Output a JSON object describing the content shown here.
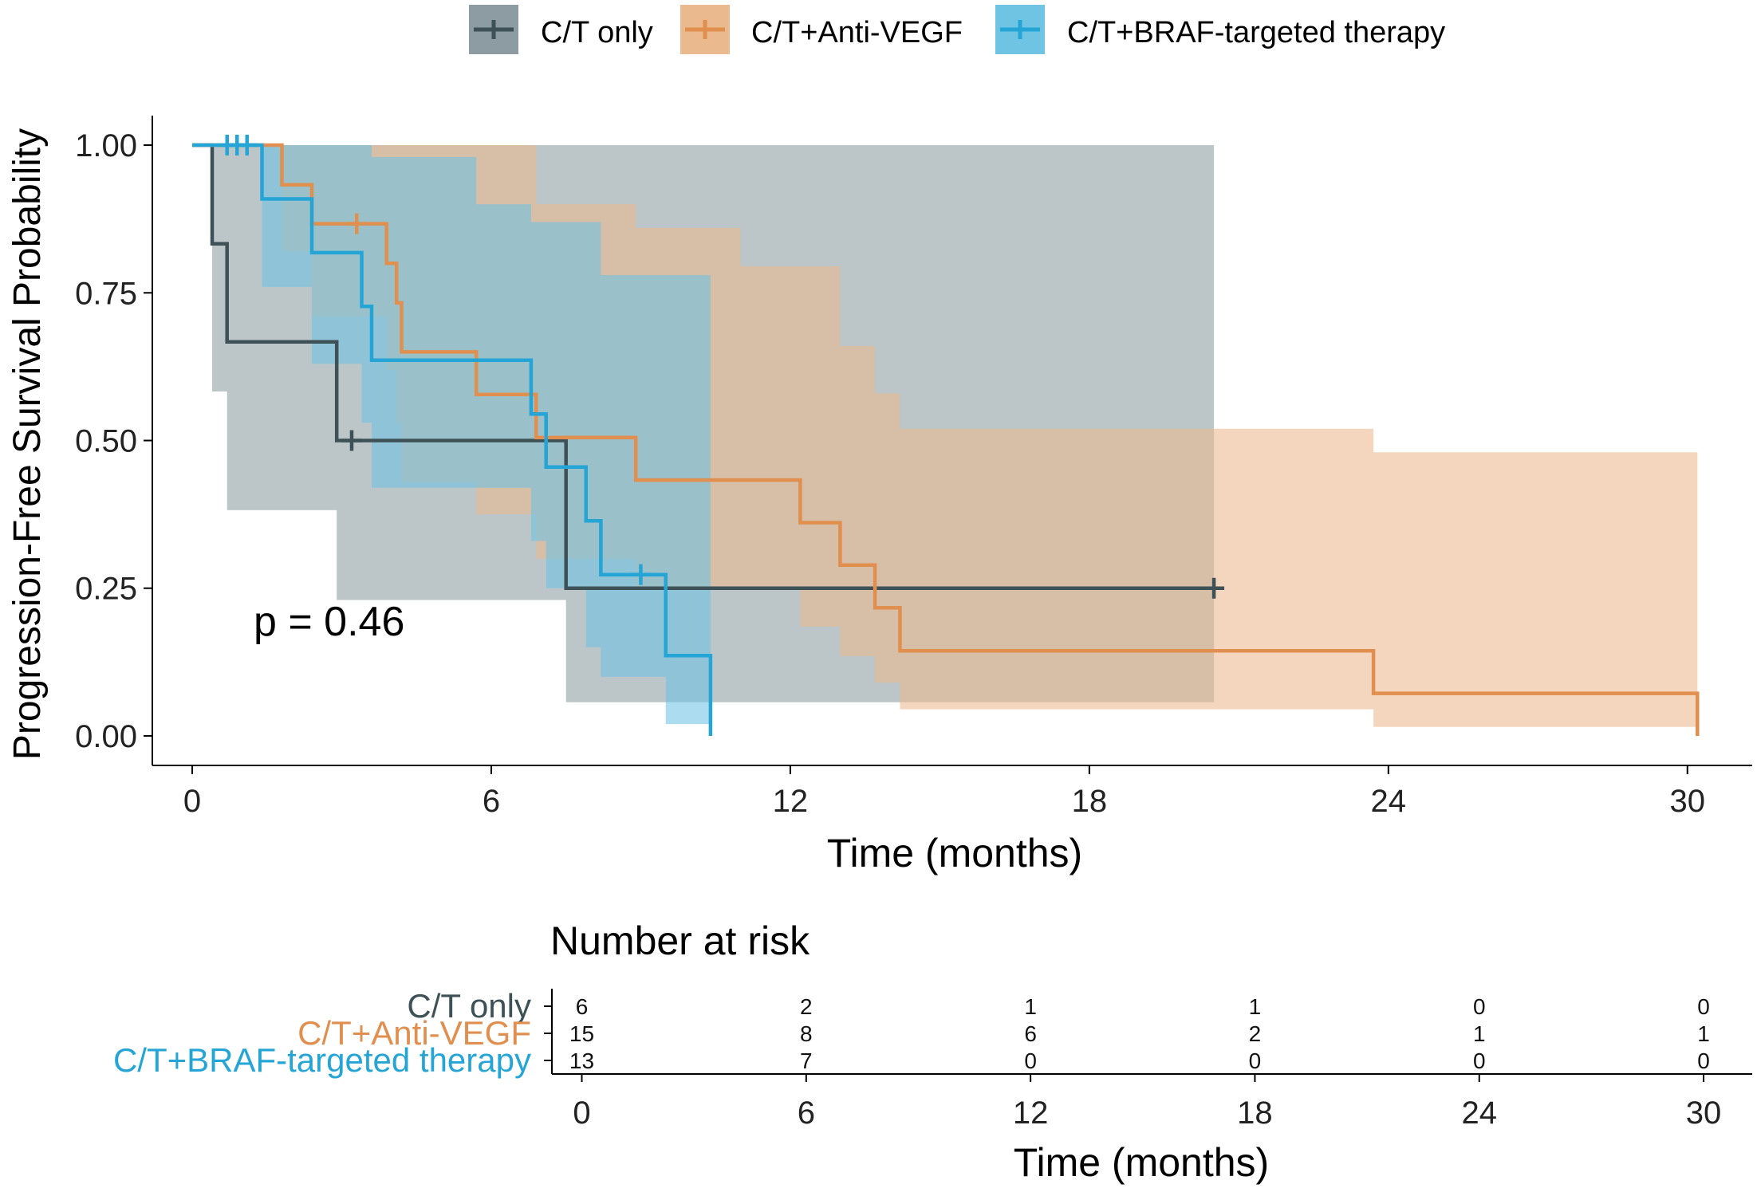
{
  "colors": {
    "ct_only": "#3d5157",
    "ct_anti_vegf": "#e08f4f",
    "ct_braf": "#25a5d6",
    "ct_only_ci": "#8c9ca2",
    "ct_anti_vegf_ci": "#eab98d",
    "ct_braf_ci": "#6fc3e3",
    "axis": "#000000"
  },
  "chart_data": [
    {
      "type": "line",
      "subtype": "kaplan-meier step",
      "title": "",
      "xlabel": "Time (months)",
      "ylabel": "Progression-Free Survival Probability",
      "xlim": [
        -0.8,
        31.3
      ],
      "ylim": [
        -0.05,
        1.05
      ],
      "x_ticks": [
        0,
        6,
        12,
        18,
        24,
        30
      ],
      "x_tick_labels": [
        "0",
        "6",
        "12",
        "18",
        "24",
        "30"
      ],
      "y_ticks": [
        0.0,
        0.25,
        0.5,
        0.75,
        1.0
      ],
      "y_tick_labels": [
        "0.00",
        "0.25",
        "0.50",
        "0.75",
        "1.00"
      ],
      "legend_position": "top",
      "annotation": "p = 0.46",
      "series": [
        {
          "name": "C/T only",
          "color_key": "ct_only",
          "steps": [
            [
              0,
              1.0
            ],
            [
              0.4,
              0.833
            ],
            [
              0.7,
              0.667
            ],
            [
              2.9,
              0.5
            ],
            [
              7.5,
              0.25
            ],
            [
              20.5,
              0.25
            ]
          ],
          "censors": [
            [
              3.2,
              0.5
            ],
            [
              20.5,
              0.25
            ]
          ],
          "ci": [
            [
              0,
              1.0,
              1.0
            ],
            [
              0.4,
              1.0,
              0.583
            ],
            [
              0.7,
              1.0,
              0.382
            ],
            [
              2.9,
              1.0,
              0.23
            ],
            [
              7.5,
              1.0,
              0.057
            ],
            [
              20.5,
              1.0,
              0.057
            ]
          ]
        },
        {
          "name": "C/T+Anti-VEGF",
          "color_key": "ct_anti_vegf",
          "steps": [
            [
              0,
              1.0
            ],
            [
              1.8,
              0.933
            ],
            [
              2.4,
              0.867
            ],
            [
              3.9,
              0.8
            ],
            [
              4.1,
              0.733
            ],
            [
              4.2,
              0.65
            ],
            [
              5.7,
              0.578
            ],
            [
              6.9,
              0.505
            ],
            [
              8.9,
              0.433
            ],
            [
              12.2,
              0.361
            ],
            [
              13.0,
              0.289
            ],
            [
              13.7,
              0.217
            ],
            [
              14.2,
              0.144
            ],
            [
              23.7,
              0.072
            ],
            [
              30.2,
              0.0
            ]
          ],
          "censors": [
            [
              3.3,
              0.867
            ]
          ],
          "ci": [
            [
              0,
              1.0,
              1.0
            ],
            [
              1.8,
              1.0,
              0.82
            ],
            [
              2.4,
              1.0,
              0.71
            ],
            [
              3.9,
              1.0,
              0.62
            ],
            [
              4.1,
              1.0,
              0.53
            ],
            [
              4.2,
              1.0,
              0.43
            ],
            [
              5.7,
              1.0,
              0.375
            ],
            [
              6.9,
              0.9,
              0.3
            ],
            [
              8.9,
              0.86,
              0.25
            ],
            [
              10.3,
              0.86,
              0.25
            ],
            [
              11.0,
              0.795,
              0.25
            ],
            [
              12.2,
              0.795,
              0.185
            ],
            [
              13.0,
              0.66,
              0.135
            ],
            [
              13.7,
              0.58,
              0.09
            ],
            [
              14.2,
              0.52,
              0.045
            ],
            [
              20.5,
              0.52,
              0.045
            ],
            [
              23.7,
              0.48,
              0.015
            ],
            [
              30.2,
              0.48,
              0.015
            ]
          ]
        },
        {
          "name": "C/T+BRAF-targeted therapy",
          "color_key": "ct_braf",
          "steps": [
            [
              0,
              1.0
            ],
            [
              1.4,
              0.909
            ],
            [
              2.4,
              0.818
            ],
            [
              3.4,
              0.727
            ],
            [
              3.6,
              0.636
            ],
            [
              6.8,
              0.545
            ],
            [
              7.1,
              0.455
            ],
            [
              7.9,
              0.364
            ],
            [
              8.2,
              0.273
            ],
            [
              9.5,
              0.136
            ],
            [
              10.4,
              0.0
            ]
          ],
          "censors": [
            [
              0.7,
              1.0
            ],
            [
              0.9,
              1.0
            ],
            [
              1.1,
              1.0
            ],
            [
              9.0,
              0.273
            ]
          ],
          "ci": [
            [
              0,
              1.0,
              1.0
            ],
            [
              1.4,
              1.0,
              0.76
            ],
            [
              2.4,
              1.0,
              0.63
            ],
            [
              3.4,
              1.0,
              0.53
            ],
            [
              3.6,
              0.98,
              0.42
            ],
            [
              5.7,
              0.9,
              0.42
            ],
            [
              6.8,
              0.87,
              0.33
            ],
            [
              7.1,
              0.87,
              0.25
            ],
            [
              7.9,
              0.87,
              0.15
            ],
            [
              8.2,
              0.78,
              0.1
            ],
            [
              9.5,
              0.78,
              0.02
            ],
            [
              10.4,
              0.78,
              0.02
            ]
          ]
        }
      ]
    },
    {
      "type": "table",
      "title": "Number at risk",
      "xlabel": "Time (months)",
      "xlim": [
        -0.8,
        31.3
      ],
      "x_ticks": [
        0,
        6,
        12,
        18,
        24,
        30
      ],
      "x_tick_labels": [
        "0",
        "6",
        "12",
        "18",
        "24",
        "30"
      ],
      "rows": [
        {
          "label": "C/T only",
          "color_key": "ct_only",
          "values": [
            "6",
            "2",
            "1",
            "1",
            "0",
            "0"
          ]
        },
        {
          "label": "C/T+Anti-VEGF",
          "color_key": "ct_anti_vegf",
          "values": [
            "15",
            "8",
            "6",
            "2",
            "1",
            "1"
          ]
        },
        {
          "label": "C/T+BRAF-targeted therapy",
          "color_key": "ct_braf",
          "values": [
            "13",
            "7",
            "0",
            "0",
            "0",
            "0"
          ]
        }
      ]
    }
  ]
}
